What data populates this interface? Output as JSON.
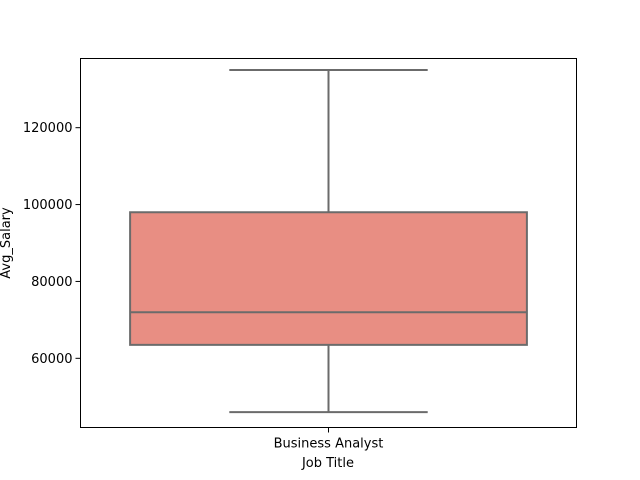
{
  "chart_data": {
    "type": "box",
    "title": "",
    "xlabel": "Job Title",
    "ylabel": "Avg_Salary",
    "ylim": [
      42000,
      138000
    ],
    "yticks": [
      60000,
      80000,
      100000,
      120000
    ],
    "ytick_labels": [
      "60000",
      "80000",
      "100000",
      "120000"
    ],
    "categories": [
      "Business Analyst"
    ],
    "boxes": [
      {
        "category": "Business Analyst",
        "whisker_low": 46000,
        "q1": 63500,
        "median": 72000,
        "q3": 98000,
        "whisker_high": 135000
      }
    ],
    "grid": false,
    "legend": "none",
    "colors": {
      "box_fill": "#e88e83",
      "box_edge": "#6b6b6b",
      "axis": "#000000"
    }
  }
}
